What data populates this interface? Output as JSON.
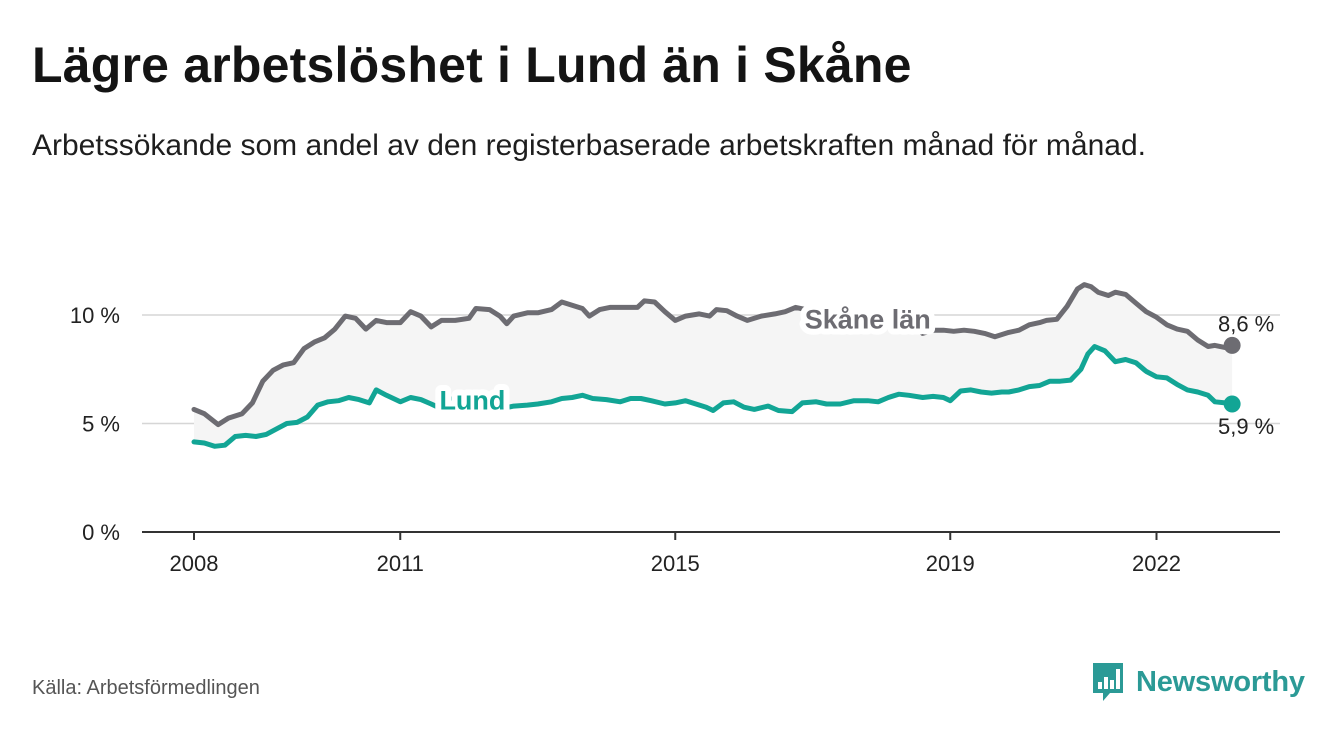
{
  "title": "Lägre arbetslöshet i Lund än i Skåne",
  "subtitle": "Arbetssökande som andel av den registerbaserade arbetskraften månad för månad.",
  "source": "Källa: Arbetsförmedlingen",
  "brand": {
    "name": "Newsworthy",
    "icon": "newsworthy-logo-icon",
    "color": "#2b9a96"
  },
  "chart_data": {
    "type": "line",
    "title": "Lägre arbetslöshet i Lund än i Skåne",
    "xlabel": "",
    "ylabel": "",
    "ylim": [
      0,
      12
    ],
    "xlim": [
      2007.75,
      2023.15
    ],
    "grid": true,
    "y_ticks": [
      {
        "value": 0,
        "label": "0 %"
      },
      {
        "value": 5,
        "label": "5 %"
      },
      {
        "value": 10,
        "label": "10 %"
      }
    ],
    "x_ticks": [
      {
        "value": 2008.0,
        "label": "2008"
      },
      {
        "value": 2011.0,
        "label": "2011"
      },
      {
        "value": 2015.0,
        "label": "2015"
      },
      {
        "value": 2019.0,
        "label": "2019"
      },
      {
        "value": 2022.0,
        "label": "2022"
      }
    ],
    "series": [
      {
        "name": "Skåne län",
        "color": "#6d6c72",
        "label_at": 2017.8,
        "end_label": "8,6 %",
        "points": [
          [
            2008.0,
            5.65
          ],
          [
            2008.15,
            5.45
          ],
          [
            2008.35,
            4.95
          ],
          [
            2008.5,
            5.25
          ],
          [
            2008.7,
            5.45
          ],
          [
            2008.85,
            5.95
          ],
          [
            2009.0,
            6.95
          ],
          [
            2009.15,
            7.45
          ],
          [
            2009.3,
            7.7
          ],
          [
            2009.45,
            7.8
          ],
          [
            2009.6,
            8.45
          ],
          [
            2009.75,
            8.75
          ],
          [
            2009.9,
            8.95
          ],
          [
            2010.05,
            9.35
          ],
          [
            2010.2,
            9.95
          ],
          [
            2010.35,
            9.85
          ],
          [
            2010.5,
            9.35
          ],
          [
            2010.65,
            9.75
          ],
          [
            2010.8,
            9.65
          ],
          [
            2011.0,
            9.65
          ],
          [
            2011.15,
            10.15
          ],
          [
            2011.3,
            9.95
          ],
          [
            2011.45,
            9.45
          ],
          [
            2011.6,
            9.75
          ],
          [
            2011.8,
            9.75
          ],
          [
            2012.0,
            9.85
          ],
          [
            2012.1,
            10.3
          ],
          [
            2012.3,
            10.25
          ],
          [
            2012.45,
            9.95
          ],
          [
            2012.55,
            9.6
          ],
          [
            2012.65,
            9.95
          ],
          [
            2012.85,
            10.1
          ],
          [
            2013.0,
            10.1
          ],
          [
            2013.2,
            10.25
          ],
          [
            2013.35,
            10.6
          ],
          [
            2013.5,
            10.45
          ],
          [
            2013.65,
            10.3
          ],
          [
            2013.75,
            9.95
          ],
          [
            2013.9,
            10.25
          ],
          [
            2014.05,
            10.35
          ],
          [
            2014.25,
            10.35
          ],
          [
            2014.45,
            10.35
          ],
          [
            2014.55,
            10.65
          ],
          [
            2014.7,
            10.6
          ],
          [
            2014.85,
            10.15
          ],
          [
            2015.0,
            9.75
          ],
          [
            2015.15,
            9.95
          ],
          [
            2015.35,
            10.05
          ],
          [
            2015.5,
            9.95
          ],
          [
            2015.6,
            10.25
          ],
          [
            2015.75,
            10.2
          ],
          [
            2015.9,
            9.95
          ],
          [
            2016.05,
            9.75
          ],
          [
            2016.25,
            9.95
          ],
          [
            2016.45,
            10.05
          ],
          [
            2016.6,
            10.15
          ],
          [
            2016.75,
            10.35
          ],
          [
            2016.9,
            10.25
          ],
          [
            2017.05,
            9.95
          ],
          [
            2017.2,
            9.65
          ],
          [
            2017.4,
            9.65
          ],
          [
            2017.55,
            9.8
          ],
          [
            2017.65,
            9.8
          ],
          [
            2017.85,
            9.8
          ],
          [
            2018.2,
            9.8
          ],
          [
            2018.45,
            9.55
          ],
          [
            2018.6,
            9.15
          ],
          [
            2018.75,
            9.3
          ],
          [
            2018.9,
            9.3
          ],
          [
            2019.05,
            9.25
          ],
          [
            2019.2,
            9.3
          ],
          [
            2019.35,
            9.25
          ],
          [
            2019.5,
            9.15
          ],
          [
            2019.65,
            9.0
          ],
          [
            2019.85,
            9.2
          ],
          [
            2020.0,
            9.3
          ],
          [
            2020.15,
            9.55
          ],
          [
            2020.3,
            9.65
          ],
          [
            2020.4,
            9.75
          ],
          [
            2020.55,
            9.8
          ],
          [
            2020.7,
            10.4
          ],
          [
            2020.85,
            11.2
          ],
          [
            2020.95,
            11.4
          ],
          [
            2021.05,
            11.3
          ],
          [
            2021.15,
            11.05
          ],
          [
            2021.3,
            10.9
          ],
          [
            2021.4,
            11.05
          ],
          [
            2021.55,
            10.95
          ],
          [
            2021.7,
            10.55
          ],
          [
            2021.85,
            10.15
          ],
          [
            2022.0,
            9.9
          ],
          [
            2022.15,
            9.55
          ],
          [
            2022.3,
            9.35
          ],
          [
            2022.45,
            9.25
          ],
          [
            2022.6,
            8.85
          ],
          [
            2022.75,
            8.55
          ],
          [
            2022.85,
            8.6
          ],
          [
            2023.0,
            8.5
          ],
          [
            2023.1,
            8.6
          ]
        ]
      },
      {
        "name": "Lund",
        "color": "#12a595",
        "label_at": 2012.05,
        "end_label": "5,9 %",
        "points": [
          [
            2008.0,
            4.15
          ],
          [
            2008.15,
            4.1
          ],
          [
            2008.3,
            3.95
          ],
          [
            2008.45,
            4.0
          ],
          [
            2008.6,
            4.4
          ],
          [
            2008.75,
            4.45
          ],
          [
            2008.9,
            4.4
          ],
          [
            2009.05,
            4.5
          ],
          [
            2009.2,
            4.75
          ],
          [
            2009.35,
            5.0
          ],
          [
            2009.5,
            5.05
          ],
          [
            2009.65,
            5.3
          ],
          [
            2009.8,
            5.85
          ],
          [
            2009.95,
            6.0
          ],
          [
            2010.1,
            6.05
          ],
          [
            2010.25,
            6.2
          ],
          [
            2010.4,
            6.1
          ],
          [
            2010.55,
            5.95
          ],
          [
            2010.65,
            6.55
          ],
          [
            2010.8,
            6.3
          ],
          [
            2011.0,
            6.0
          ],
          [
            2011.15,
            6.2
          ],
          [
            2011.3,
            6.1
          ],
          [
            2011.45,
            5.9
          ],
          [
            2011.55,
            5.75
          ],
          [
            2011.65,
            6.15
          ],
          [
            2011.85,
            6.1
          ],
          [
            2012.05,
            6.05
          ],
          [
            2012.2,
            6.1
          ],
          [
            2012.35,
            5.85
          ],
          [
            2012.5,
            5.7
          ],
          [
            2012.65,
            5.8
          ],
          [
            2012.85,
            5.85
          ],
          [
            2013.0,
            5.9
          ],
          [
            2013.2,
            6.0
          ],
          [
            2013.35,
            6.15
          ],
          [
            2013.5,
            6.2
          ],
          [
            2013.65,
            6.3
          ],
          [
            2013.8,
            6.15
          ],
          [
            2014.0,
            6.1
          ],
          [
            2014.2,
            6.0
          ],
          [
            2014.35,
            6.15
          ],
          [
            2014.5,
            6.15
          ],
          [
            2014.65,
            6.05
          ],
          [
            2014.85,
            5.9
          ],
          [
            2015.0,
            5.95
          ],
          [
            2015.15,
            6.05
          ],
          [
            2015.3,
            5.9
          ],
          [
            2015.45,
            5.75
          ],
          [
            2015.55,
            5.6
          ],
          [
            2015.7,
            5.95
          ],
          [
            2015.85,
            6.0
          ],
          [
            2016.0,
            5.75
          ],
          [
            2016.15,
            5.65
          ],
          [
            2016.35,
            5.8
          ],
          [
            2016.5,
            5.6
          ],
          [
            2016.7,
            5.55
          ],
          [
            2016.85,
            5.95
          ],
          [
            2017.05,
            6.0
          ],
          [
            2017.2,
            5.9
          ],
          [
            2017.4,
            5.9
          ],
          [
            2017.6,
            6.05
          ],
          [
            2017.8,
            6.05
          ],
          [
            2017.95,
            6.0
          ],
          [
            2018.1,
            6.2
          ],
          [
            2018.25,
            6.35
          ],
          [
            2018.4,
            6.3
          ],
          [
            2018.6,
            6.2
          ],
          [
            2018.75,
            6.25
          ],
          [
            2018.9,
            6.2
          ],
          [
            2019.0,
            6.05
          ],
          [
            2019.15,
            6.5
          ],
          [
            2019.3,
            6.55
          ],
          [
            2019.45,
            6.45
          ],
          [
            2019.6,
            6.4
          ],
          [
            2019.75,
            6.45
          ],
          [
            2019.85,
            6.45
          ],
          [
            2020.0,
            6.55
          ],
          [
            2020.15,
            6.7
          ],
          [
            2020.3,
            6.75
          ],
          [
            2020.45,
            6.95
          ],
          [
            2020.6,
            6.95
          ],
          [
            2020.75,
            7.0
          ],
          [
            2020.9,
            7.5
          ],
          [
            2021.0,
            8.2
          ],
          [
            2021.1,
            8.55
          ],
          [
            2021.25,
            8.35
          ],
          [
            2021.4,
            7.85
          ],
          [
            2021.55,
            7.95
          ],
          [
            2021.7,
            7.8
          ],
          [
            2021.85,
            7.4
          ],
          [
            2022.0,
            7.15
          ],
          [
            2022.15,
            7.1
          ],
          [
            2022.3,
            6.8
          ],
          [
            2022.45,
            6.55
          ],
          [
            2022.6,
            6.45
          ],
          [
            2022.75,
            6.3
          ],
          [
            2022.85,
            6.0
          ],
          [
            2023.0,
            5.95
          ],
          [
            2023.1,
            5.9
          ]
        ]
      }
    ]
  }
}
